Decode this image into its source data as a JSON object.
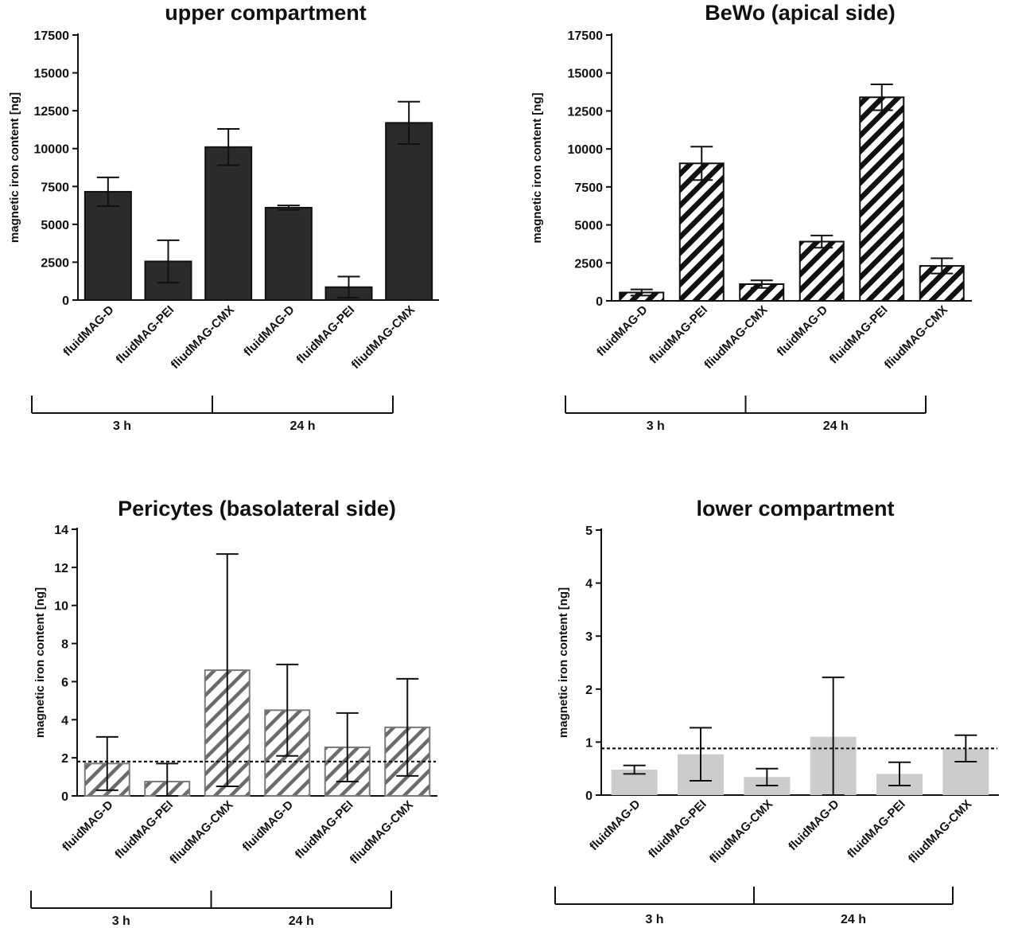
{
  "chart_data": [
    {
      "type": "bar",
      "title": "upper compartment",
      "ylabel": "magnetic iron content [ng]",
      "ylim": [
        0,
        17500
      ],
      "yticks": [
        0,
        2500,
        5000,
        7500,
        10000,
        12500,
        15000,
        17500
      ],
      "categories": [
        "fluidMAG-D",
        "fluidMAG-PEI",
        "fliudMAG-CMX",
        "fluidMAG-D",
        "fluidMAG-PEI",
        "fliudMAG-CMX"
      ],
      "values": [
        7150,
        2550,
        10100,
        6100,
        850,
        11700
      ],
      "errors": [
        950,
        1400,
        1200,
        150,
        700,
        1400
      ],
      "groups": [
        {
          "label": "3 h",
          "span": [
            0,
            2
          ]
        },
        {
          "label": "24 h",
          "span": [
            3,
            5
          ]
        }
      ],
      "style": "solid",
      "threshold": null
    },
    {
      "type": "bar",
      "title": "BeWo (apical side)",
      "ylabel": "magnetic iron content [ng]",
      "ylim": [
        0,
        17500
      ],
      "yticks": [
        0,
        2500,
        5000,
        7500,
        10000,
        12500,
        15000,
        17500
      ],
      "categories": [
        "fluidMAG-D",
        "fluidMAG-PEI",
        "fliudMAG-CMX",
        "fluidMAG-D",
        "fluidMAG-PEI",
        "fliudMAG-CMX"
      ],
      "values": [
        550,
        9050,
        1100,
        3900,
        13400,
        2300
      ],
      "errors": [
        200,
        1100,
        250,
        400,
        850,
        500
      ],
      "groups": [
        {
          "label": "3 h",
          "span": [
            0,
            2
          ]
        },
        {
          "label": "24 h",
          "span": [
            3,
            5
          ]
        }
      ],
      "style": "hatch-black",
      "threshold": null
    },
    {
      "type": "bar",
      "title": "Pericytes (basolateral side)",
      "ylabel": "magnetic iron content [ng]",
      "ylim": [
        0,
        14
      ],
      "yticks": [
        0,
        2,
        4,
        6,
        8,
        10,
        12,
        14
      ],
      "categories": [
        "fluidMAG-D",
        "fluidMAG-PEI",
        "fliudMAG-CMX",
        "fluidMAG-D",
        "fluidMAG-PEI",
        "fliudMAG-CMX"
      ],
      "values": [
        1.7,
        0.75,
        6.6,
        4.5,
        2.55,
        3.6
      ],
      "errors": [
        1.4,
        0.95,
        6.1,
        2.4,
        1.8,
        2.55
      ],
      "groups": [
        {
          "label": "3 h",
          "span": [
            0,
            2
          ]
        },
        {
          "label": "24 h",
          "span": [
            3,
            5
          ]
        }
      ],
      "style": "hatch-gray",
      "threshold": 1.8
    },
    {
      "type": "bar",
      "title": "lower compartment",
      "ylabel": "magnetic iron content [ng]",
      "ylim": [
        0,
        5
      ],
      "yticks": [
        0,
        1,
        2,
        3,
        4,
        5
      ],
      "categories": [
        "fluidMAG-D",
        "fluidMAG-PEI",
        "fliudMAG-CMX",
        "fluidMAG-D",
        "fluidMAG-PEI",
        "fliudMAG-CMX"
      ],
      "values": [
        0.48,
        0.77,
        0.34,
        1.1,
        0.4,
        0.88
      ],
      "errors": [
        0.08,
        0.5,
        0.16,
        1.12,
        0.22,
        0.25
      ],
      "groups": [
        {
          "label": "3 h",
          "span": [
            0,
            2
          ]
        },
        {
          "label": "24 h",
          "span": [
            3,
            5
          ]
        }
      ],
      "style": "light-gray",
      "threshold": 0.88
    }
  ]
}
